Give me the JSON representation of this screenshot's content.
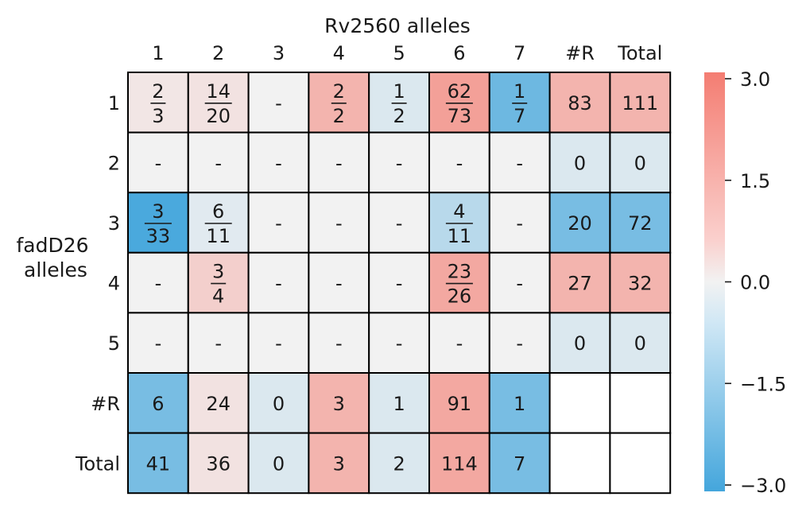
{
  "chart_data": {
    "type": "heatmap",
    "title": "Rv2560 alleles",
    "xlabel": "Rv2560 alleles",
    "ylabel": "fadD26\nalleles",
    "ylabel_lines": [
      "fadD26",
      "alleles"
    ],
    "x_categories": [
      "1",
      "2",
      "3",
      "4",
      "5",
      "6",
      "7",
      "#R",
      "Total"
    ],
    "y_categories": [
      "1",
      "2",
      "3",
      "4",
      "5",
      "#R",
      "Total"
    ],
    "cells": [
      [
        {
          "label": "2/3",
          "num": "2",
          "den": "3",
          "value": 0.3
        },
        {
          "label": "14/20",
          "num": "14",
          "den": "20",
          "value": 0.4
        },
        {
          "label": "-",
          "value": 0
        },
        {
          "label": "2/2",
          "num": "2",
          "den": "2",
          "value": 1.6
        },
        {
          "label": "1/2",
          "num": "1",
          "den": "2",
          "value": -0.4
        },
        {
          "label": "62/73",
          "num": "62",
          "den": "73",
          "value": 2.1
        },
        {
          "label": "1/7",
          "num": "1",
          "den": "7",
          "value": -2.3
        },
        {
          "label": "83",
          "value": 1.6
        },
        {
          "label": "111",
          "value": 1.6
        }
      ],
      [
        {
          "label": "-",
          "value": 0
        },
        {
          "label": "-",
          "value": 0
        },
        {
          "label": "-",
          "value": 0
        },
        {
          "label": "-",
          "value": 0
        },
        {
          "label": "-",
          "value": 0
        },
        {
          "label": "-",
          "value": 0
        },
        {
          "label": "-",
          "value": 0
        },
        {
          "label": "0",
          "value": -0.4
        },
        {
          "label": "0",
          "value": -0.4
        }
      ],
      [
        {
          "label": "3/33",
          "num": "3",
          "den": "33",
          "value": -2.9
        },
        {
          "label": "6/11",
          "num": "6",
          "den": "11",
          "value": -0.3
        },
        {
          "label": "-",
          "value": 0
        },
        {
          "label": "-",
          "value": 0
        },
        {
          "label": "-",
          "value": 0
        },
        {
          "label": "4/11",
          "num": "4",
          "den": "11",
          "value": -1.0
        },
        {
          "label": "-",
          "value": 0
        },
        {
          "label": "20",
          "value": -2.1
        },
        {
          "label": "72",
          "value": -2.1
        }
      ],
      [
        {
          "label": "-",
          "value": 0
        },
        {
          "label": "3/4",
          "num": "3",
          "den": "4",
          "value": 0.9
        },
        {
          "label": "-",
          "value": 0
        },
        {
          "label": "-",
          "value": 0
        },
        {
          "label": "-",
          "value": 0
        },
        {
          "label": "23/26",
          "num": "23",
          "den": "26",
          "value": 1.9
        },
        {
          "label": "-",
          "value": 0
        },
        {
          "label": "27",
          "value": 1.6
        },
        {
          "label": "32",
          "value": 1.6
        }
      ],
      [
        {
          "label": "-",
          "value": 0
        },
        {
          "label": "-",
          "value": 0
        },
        {
          "label": "-",
          "value": 0
        },
        {
          "label": "-",
          "value": 0
        },
        {
          "label": "-",
          "value": 0
        },
        {
          "label": "-",
          "value": 0
        },
        {
          "label": "-",
          "value": 0
        },
        {
          "label": "0",
          "value": -0.4
        },
        {
          "label": "0",
          "value": -0.4
        }
      ],
      [
        {
          "label": "6",
          "value": -2.1
        },
        {
          "label": "24",
          "value": 0.4
        },
        {
          "label": "0",
          "value": -0.4
        },
        {
          "label": "3",
          "value": 1.6
        },
        {
          "label": "1",
          "value": -0.4
        },
        {
          "label": "91",
          "value": 1.9
        },
        {
          "label": "1",
          "value": -2.1
        },
        {
          "label": "",
          "value": null
        },
        {
          "label": "",
          "value": null
        }
      ],
      [
        {
          "label": "41",
          "value": -2.1
        },
        {
          "label": "36",
          "value": 0.4
        },
        {
          "label": "0",
          "value": -0.4
        },
        {
          "label": "3",
          "value": 1.6
        },
        {
          "label": "2",
          "value": -0.4
        },
        {
          "label": "114",
          "value": 1.9
        },
        {
          "label": "7",
          "value": -2.1
        },
        {
          "label": "",
          "value": null
        },
        {
          "label": "",
          "value": null
        }
      ]
    ],
    "colorbar": {
      "vmin": -3.0,
      "vmax": 3.0,
      "ticks": [
        3.0,
        1.5,
        0.0,
        -1.5,
        -3.0
      ],
      "tick_labels": [
        "3.0",
        "1.5",
        "0.0",
        "−1.5",
        "−3.0"
      ],
      "colors": {
        "low": "#44a6dc",
        "mid": "#f2f2f2",
        "high": "#f47d72"
      }
    },
    "grid": true
  }
}
